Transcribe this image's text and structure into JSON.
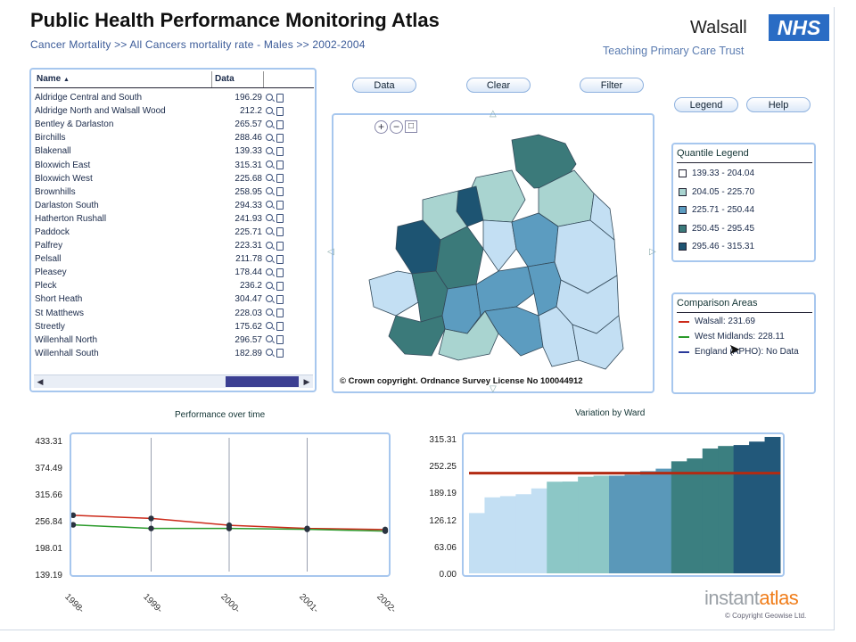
{
  "header": {
    "title": "Public Health Performance Monitoring Atlas",
    "subtitle": "Cancer Mortality >> All Cancers mortality rate - Males >> 2002-2004",
    "brand": "Walsall",
    "nhs": "NHS",
    "trust": "Teaching Primary Care Trust"
  },
  "toolbar": {
    "data": "Data",
    "clear": "Clear",
    "filter": "Filter",
    "legend": "Legend",
    "help": "Help"
  },
  "table": {
    "col_name": "Name",
    "col_data": "Data",
    "sort_icon": "sort-ascending-icon",
    "rows": [
      {
        "name": "Aldridge Central and South",
        "value": "196.29"
      },
      {
        "name": "Aldridge North and Walsall Wood",
        "value": "212.2"
      },
      {
        "name": "Bentley & Darlaston",
        "value": "265.57"
      },
      {
        "name": "Birchills",
        "value": "288.46"
      },
      {
        "name": "Blakenall",
        "value": "139.33"
      },
      {
        "name": "Bloxwich East",
        "value": "315.31"
      },
      {
        "name": "Bloxwich West",
        "value": "225.68"
      },
      {
        "name": "Brownhills",
        "value": "258.95"
      },
      {
        "name": "Darlaston South",
        "value": "294.33"
      },
      {
        "name": "Hatherton Rushall",
        "value": "241.93"
      },
      {
        "name": "Paddock",
        "value": "225.71"
      },
      {
        "name": "Palfrey",
        "value": "223.31"
      },
      {
        "name": "Pelsall",
        "value": "211.78"
      },
      {
        "name": "Pleasey",
        "value": "178.44"
      },
      {
        "name": "Pleck",
        "value": "236.2"
      },
      {
        "name": "Short Heath",
        "value": "304.47"
      },
      {
        "name": "St Matthews",
        "value": "228.03"
      },
      {
        "name": "Streetly",
        "value": "175.62"
      },
      {
        "name": "Willenhall North",
        "value": "296.57"
      },
      {
        "name": "Willenhall South",
        "value": "182.89"
      }
    ]
  },
  "map": {
    "copyright": "© Crown copyright. Ordnance Survey License No 100044912",
    "zoom_in_icon": "zoom-in-icon",
    "zoom_out_icon": "zoom-out-icon",
    "zoom_extent_icon": "zoom-extent-icon"
  },
  "quantile_legend": {
    "title": "Quantile Legend",
    "items": [
      {
        "label": "139.33 - 204.04",
        "color": "#ffffff"
      },
      {
        "label": "204.05 - 225.70",
        "color": "#a9d4d0"
      },
      {
        "label": "225.71 - 250.44",
        "color": "#5c9cc0"
      },
      {
        "label": "250.45 - 295.45",
        "color": "#3b7a7a"
      },
      {
        "label": "295.46 - 315.31",
        "color": "#1d5472"
      }
    ]
  },
  "comparison": {
    "title": "Comparison Areas",
    "items": [
      {
        "label": "Walsall: 231.69",
        "color": "#cc2a1a"
      },
      {
        "label": "West Midlands: 228.11",
        "color": "#2a9a2a"
      },
      {
        "label": "England (APHO): No Data",
        "color": "#2a3a9a"
      }
    ]
  },
  "colors": {
    "panel_border": "#a7c7ee",
    "walsall_line": "#cc2a1a",
    "england_line": "#2a9a2a"
  },
  "chart_data": [
    {
      "type": "line",
      "title": "Performance over time",
      "x": [
        "1998-",
        "1999-",
        "2000-",
        "2001-",
        "2002-"
      ],
      "ylim": [
        139.19,
        433.31
      ],
      "yticks": [
        "433.31",
        "374.49",
        "315.66",
        "256.84",
        "198.01",
        "139.19"
      ],
      "grid": true,
      "series": [
        {
          "name": "Walsall",
          "color": "#cc2a1a",
          "values": [
            263,
            256,
            241,
            234,
            231.69
          ]
        },
        {
          "name": "West Midlands",
          "color": "#2a9a2a",
          "values": [
            242,
            234,
            234,
            232,
            228.11
          ]
        }
      ]
    },
    {
      "type": "bar",
      "title": "Variation by Ward",
      "ylim": [
        0,
        315.31
      ],
      "yticks": [
        "315.31",
        "252.25",
        "189.19",
        "126.12",
        "63.06",
        "0.00"
      ],
      "reference_value": 231.69,
      "values": [
        139.33,
        175.62,
        178.44,
        182.89,
        196.29,
        211.78,
        212.2,
        223.31,
        225.68,
        225.71,
        228.03,
        236.2,
        241.93,
        258.95,
        265.57,
        288.46,
        294.33,
        296.57,
        304.47,
        315.31
      ],
      "colors": [
        "#c3dff3",
        "#c3dff3",
        "#c3dff3",
        "#c3dff3",
        "#c3dff3",
        "#8cc7c6",
        "#8cc7c6",
        "#8cc7c6",
        "#8cc7c6",
        "#5a98b9",
        "#5a98b9",
        "#5a98b9",
        "#5a98b9",
        "#3b7f80",
        "#3b7f80",
        "#3b7f80",
        "#3b7f80",
        "#22587a",
        "#22587a",
        "#22587a"
      ]
    }
  ],
  "footer": {
    "brand_a": "instant",
    "brand_b": "atlas",
    "copyright": "© Copyright Geowise Ltd."
  }
}
